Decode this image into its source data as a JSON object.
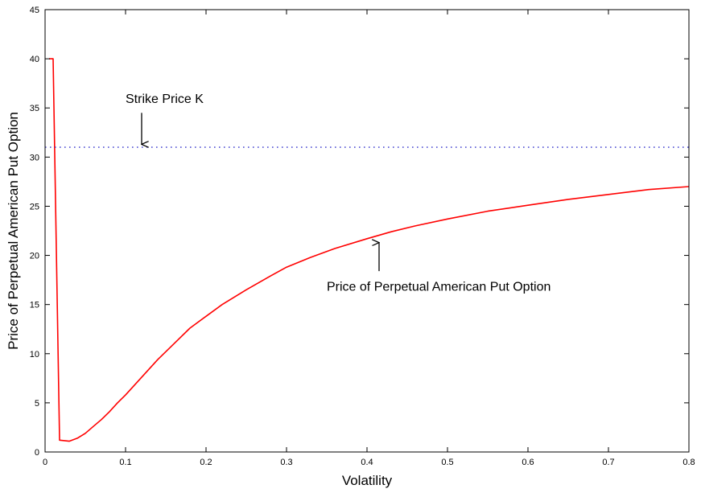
{
  "chart_data": {
    "type": "line",
    "title": "",
    "xlabel": "Volatility",
    "ylabel": "Price of Perpetual American Put Option",
    "xlim": [
      0,
      0.8
    ],
    "ylim": [
      0,
      45
    ],
    "xticks": [
      0,
      0.1,
      0.2,
      0.3,
      0.4,
      0.5,
      0.6,
      0.7,
      0.8
    ],
    "xtick_labels": [
      "0",
      "0.1",
      "0.2",
      "0.3",
      "0.4",
      "0.5",
      "0.6",
      "0.7",
      "0.8"
    ],
    "yticks": [
      0,
      5,
      10,
      15,
      20,
      25,
      30,
      35,
      40,
      45
    ],
    "ytick_labels": [
      "0",
      "5",
      "10",
      "15",
      "20",
      "25",
      "30",
      "35",
      "40",
      "45"
    ],
    "grid": false,
    "series": [
      {
        "name": "Price of Perpetual American Put Option",
        "color": "#ff0000",
        "style": "solid",
        "x": [
          0.005,
          0.01,
          0.018,
          0.03,
          0.04,
          0.05,
          0.06,
          0.07,
          0.08,
          0.09,
          0.1,
          0.12,
          0.14,
          0.16,
          0.18,
          0.2,
          0.22,
          0.25,
          0.28,
          0.3,
          0.33,
          0.36,
          0.4,
          0.43,
          0.46,
          0.5,
          0.55,
          0.6,
          0.65,
          0.7,
          0.75,
          0.8
        ],
        "y": [
          40,
          40,
          1.2,
          1.1,
          1.4,
          1.9,
          2.6,
          3.3,
          4.1,
          5.0,
          5.8,
          7.6,
          9.4,
          11.0,
          12.6,
          13.8,
          15.0,
          16.5,
          17.9,
          18.8,
          19.8,
          20.7,
          21.7,
          22.4,
          23.0,
          23.7,
          24.5,
          25.1,
          25.7,
          26.2,
          26.7,
          27.0
        ]
      },
      {
        "name": "Strike Price K",
        "color": "#3333cc",
        "style": "dotted",
        "x": [
          0,
          0.8
        ],
        "y": [
          31,
          31
        ]
      }
    ],
    "annotations": [
      {
        "text": "Strike Price K",
        "text_x": 0.1,
        "text_y": 35.5,
        "arrow_from": [
          0.12,
          34.5
        ],
        "arrow_to": [
          0.12,
          31.3
        ]
      },
      {
        "text": "Price of Perpetual American Put Option",
        "text_x": 0.35,
        "text_y": 16.4,
        "arrow_from": [
          0.415,
          18.4
        ],
        "arrow_to": [
          0.415,
          21.3
        ]
      }
    ]
  }
}
